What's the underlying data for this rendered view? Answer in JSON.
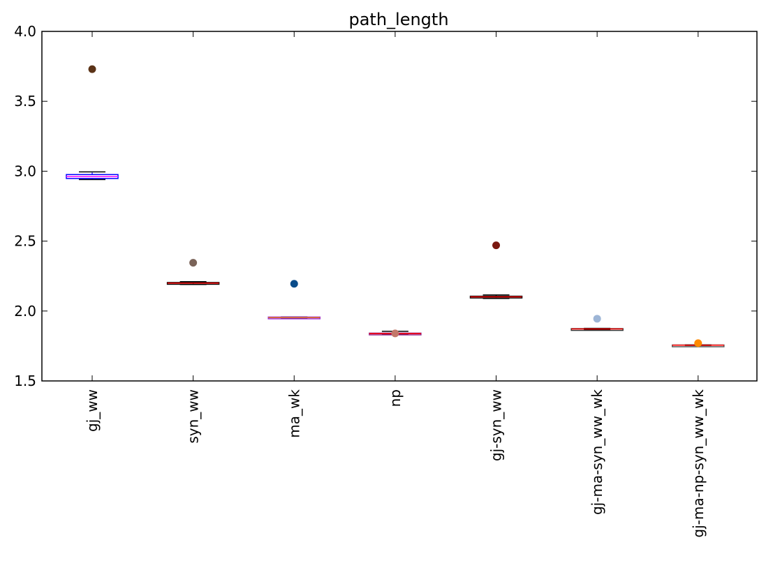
{
  "chart_data": {
    "type": "boxplot",
    "title": "path_length",
    "xlabel": "",
    "ylabel": "",
    "ylim": [
      1.5,
      4.0
    ],
    "yticks": [
      1.5,
      2.0,
      2.5,
      3.0,
      3.5,
      4.0
    ],
    "ytick_labels": [
      "1.5",
      "2.0",
      "2.5",
      "3.0",
      "3.5",
      "4.0"
    ],
    "grid": false,
    "categories": [
      "gj_ww",
      "syn_ww",
      "ma_wk",
      "np",
      "gj-syn_ww",
      "gj-ma-syn_ww_wk",
      "gj-ma-np-syn_ww_wk"
    ],
    "boxes": [
      {
        "name": "gj_ww",
        "whisker_low": 2.94,
        "q1": 2.948,
        "median": 2.962,
        "q3": 2.976,
        "whisker_high": 2.995,
        "outliers": [
          3.73
        ],
        "box_color": "#0000ff",
        "median_color": "#ff00ff",
        "outlier_color": "#5b3317"
      },
      {
        "name": "syn_ww",
        "whisker_low": 2.19,
        "q1": 2.197,
        "median": 2.2,
        "q3": 2.204,
        "whisker_high": 2.21,
        "outliers": [
          2.345
        ],
        "box_color": "#000000",
        "median_color": "#ff0000",
        "outlier_color": "#7a6358"
      },
      {
        "name": "ma_wk",
        "whisker_low": 1.948,
        "q1": 1.949,
        "median": 1.953,
        "q3": 1.957,
        "whisker_high": 1.958,
        "outliers": [
          2.195
        ],
        "box_color": "#9c2ad6",
        "median_color": "#e07a1a",
        "outlier_color": "#0a4c8a"
      },
      {
        "name": "np",
        "whisker_low": 1.831,
        "q1": 1.833,
        "median": 1.838,
        "q3": 1.842,
        "whisker_high": 1.855,
        "outliers": [
          1.84
        ],
        "box_color": "#8e2a8e",
        "median_color": "#ff0000",
        "outlier_color": "#c2786a"
      },
      {
        "name": "gj-syn_ww",
        "whisker_low": 2.09,
        "q1": 2.097,
        "median": 2.101,
        "q3": 2.106,
        "whisker_high": 2.115,
        "outliers": [
          2.47
        ],
        "box_color": "#000000",
        "median_color": "#ff0000",
        "outlier_color": "#7a1810"
      },
      {
        "name": "gj-ma-syn_ww_wk",
        "whisker_low": 1.867,
        "q1": 1.869,
        "median": 1.872,
        "q3": 1.874,
        "whisker_high": 1.876,
        "outliers": [
          1.945
        ],
        "box_color": "#333333",
        "median_color": "#ff0000",
        "outlier_color": "#9db5d6"
      },
      {
        "name": "gj-ma-np-syn_ww_wk",
        "whisker_low": 1.754,
        "q1": 1.755,
        "median": 1.756,
        "q3": 1.757,
        "whisker_high": 1.758,
        "outliers": [
          1.77
        ],
        "box_color": "#555555",
        "median_color": "#ff0000",
        "outlier_color": "#ff8a00"
      }
    ]
  }
}
